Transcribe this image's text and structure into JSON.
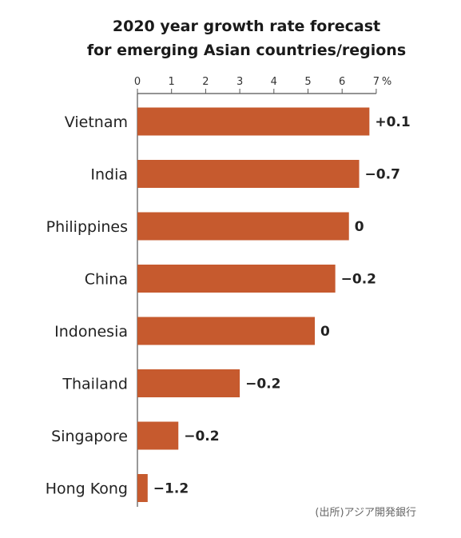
{
  "chart_data": {
    "type": "bar",
    "orientation": "horizontal",
    "title": [
      "2020 year growth rate forecast",
      "for emerging Asian countries/regions"
    ],
    "categories": [
      "Vietnam",
      "India",
      "Philippines",
      "China",
      "Indonesia",
      "Thailand",
      "Singapore",
      "Hong Kong"
    ],
    "series": [
      {
        "values": [
          6.8,
          6.5,
          6.2,
          5.8,
          5.2,
          3.0,
          1.2,
          0.3
        ]
      }
    ],
    "data_labels": [
      "+0.1",
      "−0.7",
      "0",
      "−0.2",
      "0",
      "−0.2",
      "−0.2",
      "−1.2"
    ],
    "ticks": [
      "0",
      "1",
      "2",
      "3",
      "4",
      "5",
      "6",
      "7"
    ],
    "unit": "%",
    "xlim": [
      0,
      7
    ],
    "axis_position": "top",
    "grid": false,
    "source": "(出所)アジア開発銀行",
    "colors": {
      "bar": "#c65a2e",
      "axis": "#555555"
    }
  }
}
